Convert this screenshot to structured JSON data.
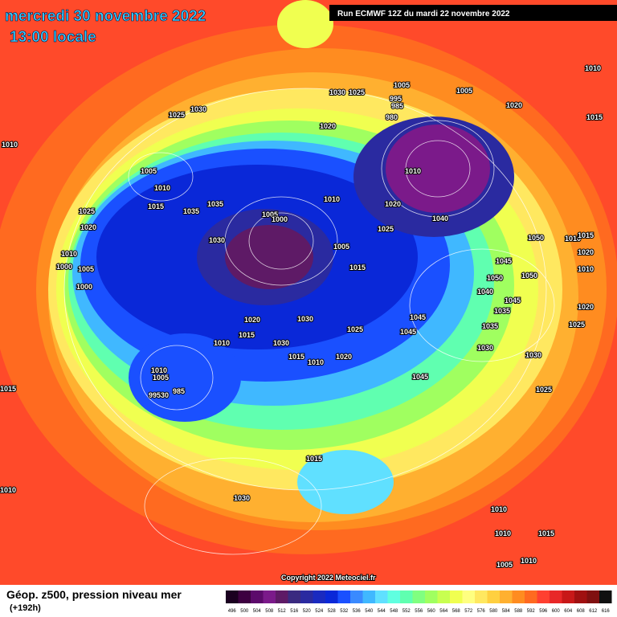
{
  "header": {
    "date": "mercredi 30 novembre 2022",
    "time": "13:00 locale",
    "run": "Run ECMWF 12Z du mardi 22 novembre 2022"
  },
  "map": {
    "pressure_labels": [
      "1010",
      "1025",
      "1030",
      "1005",
      "1010",
      "1015",
      "1025",
      "1020",
      "1010",
      "1005",
      "1000",
      "1000",
      "1035",
      "1035",
      "1030",
      "1005",
      "1000",
      "1010",
      "1005",
      "1015",
      "1030",
      "1025",
      "1005",
      "995",
      "985",
      "980",
      "1005",
      "1020",
      "1015",
      "1010",
      "1020",
      "1010",
      "1020",
      "1025",
      "1040",
      "1050",
      "1010",
      "1015",
      "1020",
      "1010",
      "1045",
      "1050",
      "1050",
      "1040",
      "1045",
      "1035",
      "1035",
      "1020",
      "1025",
      "1030",
      "1030",
      "1025",
      "1045",
      "1045",
      "1025",
      "1030",
      "1020",
      "1015",
      "1010",
      "1030",
      "1015",
      "1010",
      "1020",
      "1045",
      "1010",
      "1005",
      "99530",
      "985",
      "1015",
      "1015",
      "1010",
      "1030",
      "1010",
      "1010",
      "1015",
      "1010",
      "1005"
    ],
    "copyright": "Copyright 2022 Meteociel.fr"
  },
  "footer": {
    "title": "Géop. z500, pression niveau mer",
    "lead": "(+192h)"
  },
  "legend": {
    "levels": [
      496,
      500,
      504,
      508,
      512,
      516,
      520,
      524,
      528,
      532,
      536,
      540,
      544,
      548,
      552,
      556,
      560,
      564,
      568,
      572,
      576,
      580,
      584,
      588,
      592,
      596,
      600,
      604,
      608,
      612,
      616
    ],
    "colors": [
      "#1a0020",
      "#3d0040",
      "#5c0a6b",
      "#7b1a8a",
      "#5e1a66",
      "#3a2a80",
      "#2a2aa0",
      "#1a2ac0",
      "#0a28d8",
      "#1a50ff",
      "#3a8aff",
      "#40b8ff",
      "#60e0ff",
      "#60ffe0",
      "#60ffb0",
      "#80ff80",
      "#a0ff60",
      "#c8ff50",
      "#f0ff50",
      "#ffff80",
      "#ffe860",
      "#ffd040",
      "#ffb030",
      "#ff8c20",
      "#ff6a20",
      "#ff4030",
      "#e82828",
      "#c81818",
      "#a01010",
      "#801010",
      "#101010"
    ]
  }
}
